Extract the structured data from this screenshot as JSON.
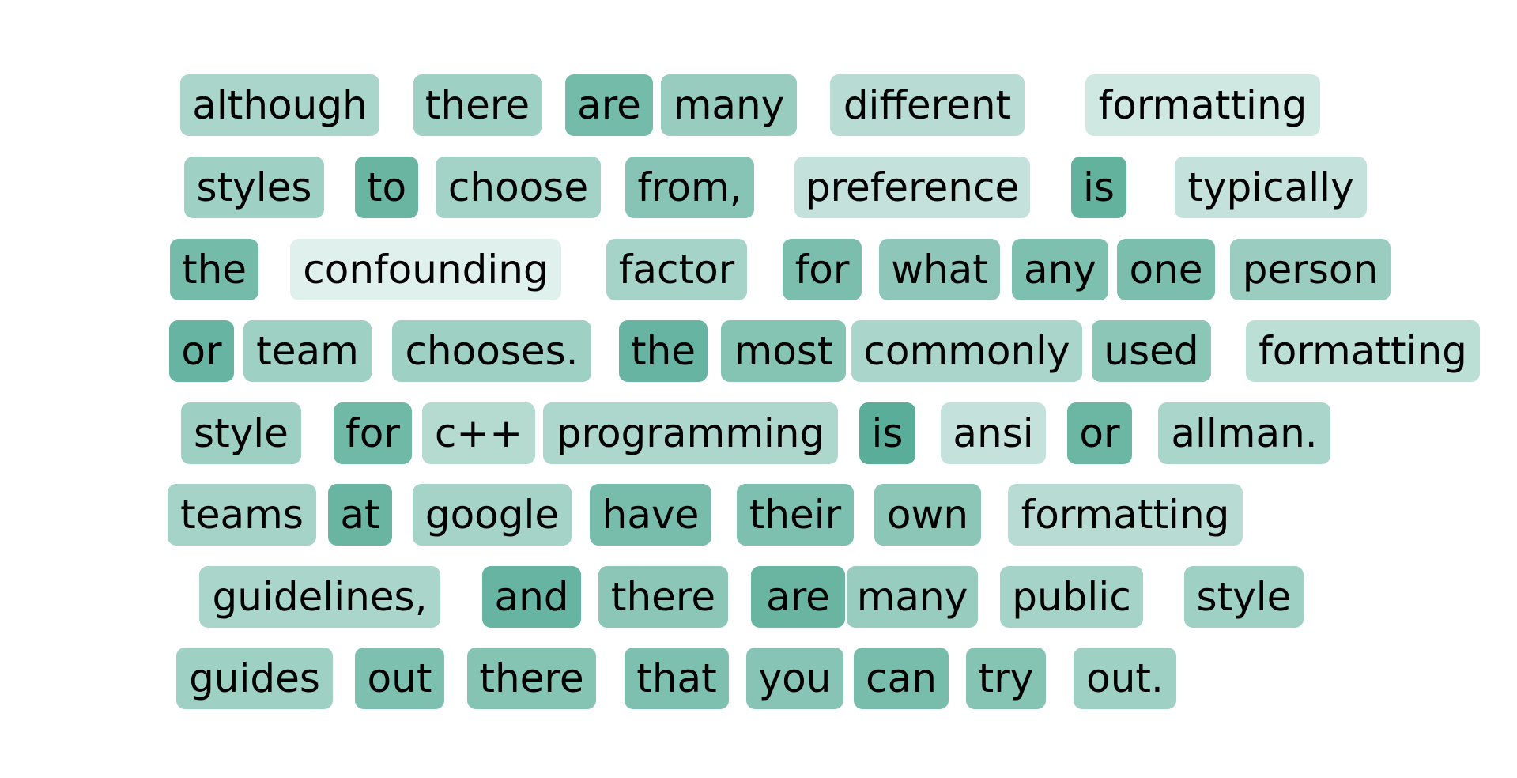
{
  "base_color": "#5aae99",
  "lines": [
    [
      {
        "text": "although",
        "weight": 0.48
      },
      {
        "text": "there",
        "weight": 0.55
      },
      {
        "text": "are",
        "weight": 0.82
      },
      {
        "text": "many",
        "weight": 0.6
      },
      {
        "text": "different",
        "weight": 0.38
      },
      {
        "text": "formatting",
        "weight": 0.22
      }
    ],
    [
      {
        "text": "styles",
        "weight": 0.55
      },
      {
        "text": "to",
        "weight": 0.9
      },
      {
        "text": "choose",
        "weight": 0.52
      },
      {
        "text": "from,",
        "weight": 0.7
      },
      {
        "text": "preference",
        "weight": 0.3
      },
      {
        "text": "is",
        "weight": 0.95
      },
      {
        "text": "typically",
        "weight": 0.3
      }
    ],
    [
      {
        "text": "the",
        "weight": 0.82
      },
      {
        "text": "confounding",
        "weight": 0.12
      },
      {
        "text": "factor",
        "weight": 0.5
      },
      {
        "text": "for",
        "weight": 0.78
      },
      {
        "text": "what",
        "weight": 0.66
      },
      {
        "text": "any",
        "weight": 0.76
      },
      {
        "text": "one",
        "weight": 0.78
      },
      {
        "text": "person",
        "weight": 0.58
      }
    ],
    [
      {
        "text": "or",
        "weight": 0.92
      },
      {
        "text": "team",
        "weight": 0.55
      },
      {
        "text": "chooses.",
        "weight": 0.55
      },
      {
        "text": "the",
        "weight": 0.92
      },
      {
        "text": "most",
        "weight": 0.72
      },
      {
        "text": "commonly",
        "weight": 0.48
      },
      {
        "text": "used",
        "weight": 0.68
      },
      {
        "text": "formatting",
        "weight": 0.36
      }
    ],
    [
      {
        "text": "style",
        "weight": 0.56
      },
      {
        "text": "for",
        "weight": 0.85
      },
      {
        "text": "c++",
        "weight": 0.4
      },
      {
        "text": "programming",
        "weight": 0.45
      },
      {
        "text": "is",
        "weight": 1.0
      },
      {
        "text": "ansi",
        "weight": 0.3
      },
      {
        "text": "or",
        "weight": 0.88
      },
      {
        "text": "allman.",
        "weight": 0.48
      }
    ],
    [
      {
        "text": "teams",
        "weight": 0.5
      },
      {
        "text": "at",
        "weight": 0.9
      },
      {
        "text": "google",
        "weight": 0.5
      },
      {
        "text": "have",
        "weight": 0.8
      },
      {
        "text": "their",
        "weight": 0.76
      },
      {
        "text": "own",
        "weight": 0.68
      },
      {
        "text": "formatting",
        "weight": 0.38
      }
    ],
    [
      {
        "text": "guidelines,",
        "weight": 0.48
      },
      {
        "text": "and",
        "weight": 0.92
      },
      {
        "text": "there",
        "weight": 0.68
      },
      {
        "text": "are",
        "weight": 0.9
      },
      {
        "text": "many",
        "weight": 0.6
      },
      {
        "text": "public",
        "weight": 0.5
      },
      {
        "text": "style",
        "weight": 0.55
      }
    ],
    [
      {
        "text": "guides",
        "weight": 0.55
      },
      {
        "text": "out",
        "weight": 0.76
      },
      {
        "text": "there",
        "weight": 0.72
      },
      {
        "text": "that",
        "weight": 0.76
      },
      {
        "text": "you",
        "weight": 0.7
      },
      {
        "text": "can",
        "weight": 0.8
      },
      {
        "text": "try",
        "weight": 0.72
      },
      {
        "text": "out.",
        "weight": 0.55
      }
    ]
  ]
}
